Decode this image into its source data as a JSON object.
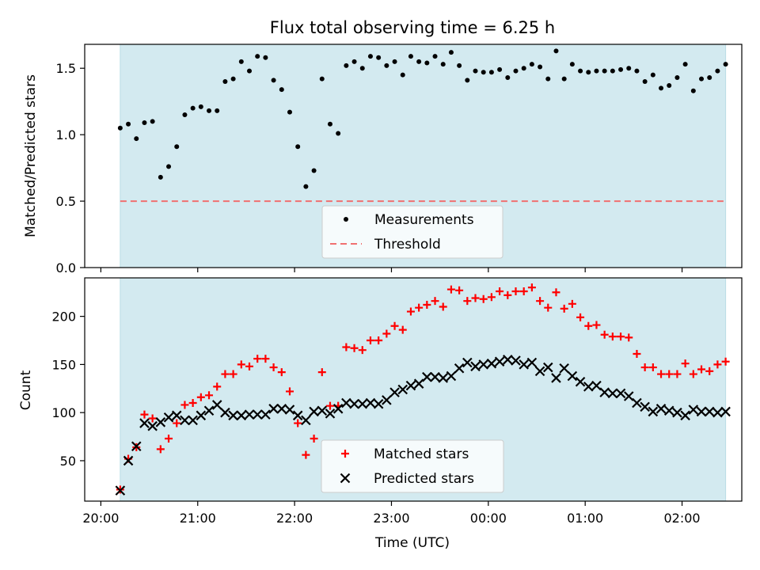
{
  "chart_data": [
    {
      "type": "scatter",
      "title": "Flux total observing time = 6.25 h",
      "ylabel": "Matched/Predicted stars",
      "xlabel": "",
      "ylim": [
        0.0,
        1.68
      ],
      "yticks": [
        "0.0",
        "0.5",
        "1.0",
        "1.5"
      ],
      "yticks_values": [
        0.0,
        0.5,
        1.0,
        1.5
      ],
      "observing_window": [
        "20:12",
        "02:27"
      ],
      "shade_color": "#d3eaf0",
      "legend": {
        "placement": "bottom-center",
        "entries": [
          "Measurements",
          "Threshold"
        ]
      },
      "series": [
        {
          "name": "Measurements",
          "marker": "dot",
          "color": "#000000",
          "x": [
            "20:12",
            "20:17",
            "20:22",
            "20:27",
            "20:32",
            "20:37",
            "20:42",
            "20:47",
            "20:52",
            "20:57",
            "21:02",
            "21:07",
            "21:12",
            "21:17",
            "21:22",
            "21:27",
            "21:32",
            "21:37",
            "21:42",
            "21:47",
            "21:52",
            "21:57",
            "22:02",
            "22:07",
            "22:12",
            "22:17",
            "22:22",
            "22:27",
            "22:32",
            "22:37",
            "22:42",
            "22:47",
            "22:52",
            "22:57",
            "23:02",
            "23:07",
            "23:12",
            "23:17",
            "23:22",
            "23:27",
            "23:32",
            "23:37",
            "23:42",
            "23:47",
            "23:52",
            "23:57",
            "00:02",
            "00:07",
            "00:12",
            "00:17",
            "00:22",
            "00:27",
            "00:32",
            "00:37",
            "00:42",
            "00:47",
            "00:52",
            "00:57",
            "01:02",
            "01:07",
            "01:12",
            "01:17",
            "01:22",
            "01:27",
            "01:32",
            "01:37",
            "01:42",
            "01:47",
            "01:52",
            "01:57",
            "02:02",
            "02:07",
            "02:12",
            "02:17",
            "02:22",
            "02:27"
          ],
          "y": [
            1.05,
            1.08,
            0.97,
            1.09,
            1.1,
            0.68,
            0.76,
            0.91,
            1.15,
            1.2,
            1.21,
            1.18,
            1.18,
            1.4,
            1.42,
            1.55,
            1.48,
            1.59,
            1.58,
            1.41,
            1.34,
            1.17,
            0.91,
            0.61,
            0.73,
            1.42,
            1.08,
            1.01,
            1.52,
            1.55,
            1.5,
            1.59,
            1.58,
            1.52,
            1.55,
            1.45,
            1.59,
            1.55,
            1.54,
            1.59,
            1.53,
            1.62,
            1.52,
            1.41,
            1.48,
            1.47,
            1.47,
            1.49,
            1.43,
            1.48,
            1.5,
            1.53,
            1.51,
            1.42,
            1.63,
            1.42,
            1.53,
            1.48,
            1.47,
            1.48,
            1.48,
            1.48,
            1.49,
            1.5,
            1.48,
            1.4,
            1.45,
            1.35,
            1.37,
            1.43,
            1.53,
            1.33,
            1.42,
            1.43,
            1.48,
            1.53
          ]
        },
        {
          "name": "Threshold",
          "marker": "dashed-line",
          "color": "#f07070",
          "y": 0.5
        }
      ]
    },
    {
      "type": "scatter",
      "title": "",
      "ylabel": "Count",
      "xlabel": "Time (UTC)",
      "ylim": [
        8,
        240
      ],
      "yticks": [
        "50",
        "100",
        "150",
        "200"
      ],
      "yticks_values": [
        50,
        100,
        150,
        200
      ],
      "xticks": [
        "20:00",
        "21:00",
        "22:00",
        "23:00",
        "00:00",
        "01:00",
        "02:00"
      ],
      "xlim": [
        "19:50",
        "02:37"
      ],
      "observing_window": [
        "20:12",
        "02:27"
      ],
      "shade_color": "#d3eaf0",
      "legend": {
        "placement": "bottom-center",
        "entries": [
          "Matched stars",
          "Predicted stars"
        ]
      },
      "series": [
        {
          "name": "Matched stars",
          "marker": "plus",
          "color": "#ff0000",
          "x": [
            "20:12",
            "20:17",
            "20:22",
            "20:27",
            "20:32",
            "20:37",
            "20:42",
            "20:47",
            "20:52",
            "20:57",
            "21:02",
            "21:07",
            "21:12",
            "21:17",
            "21:22",
            "21:27",
            "21:32",
            "21:37",
            "21:42",
            "21:47",
            "21:52",
            "21:57",
            "22:02",
            "22:07",
            "22:12",
            "22:17",
            "22:22",
            "22:27",
            "22:32",
            "22:37",
            "22:42",
            "22:47",
            "22:52",
            "22:57",
            "23:02",
            "23:07",
            "23:12",
            "23:17",
            "23:22",
            "23:27",
            "23:32",
            "23:37",
            "23:42",
            "23:47",
            "23:52",
            "23:57",
            "00:02",
            "00:07",
            "00:12",
            "00:17",
            "00:22",
            "00:27",
            "00:32",
            "00:37",
            "00:42",
            "00:47",
            "00:52",
            "00:57",
            "01:02",
            "01:07",
            "01:12",
            "01:17",
            "01:22",
            "01:27",
            "01:32",
            "01:37",
            "01:42",
            "01:47",
            "01:52",
            "01:57",
            "02:02",
            "02:07",
            "02:12",
            "02:17",
            "02:22",
            "02:27"
          ],
          "y": [
            20,
            52,
            64,
            98,
            94,
            62,
            73,
            89,
            108,
            110,
            116,
            118,
            127,
            140,
            140,
            150,
            148,
            156,
            156,
            147,
            142,
            122,
            89,
            56,
            73,
            142,
            107,
            107,
            168,
            167,
            165,
            175,
            175,
            182,
            190,
            186,
            205,
            209,
            212,
            216,
            210,
            228,
            227,
            216,
            219,
            218,
            220,
            226,
            222,
            226,
            226,
            230,
            216,
            209,
            225,
            208,
            213,
            199,
            190,
            191,
            181,
            179,
            179,
            178,
            161,
            147,
            147,
            140,
            140,
            140,
            151,
            140,
            145,
            143,
            150,
            153
          ]
        },
        {
          "name": "Predicted stars",
          "marker": "x",
          "color": "#000000",
          "x": [
            "20:12",
            "20:17",
            "20:22",
            "20:27",
            "20:32",
            "20:37",
            "20:42",
            "20:47",
            "20:52",
            "20:57",
            "21:02",
            "21:07",
            "21:12",
            "21:17",
            "21:22",
            "21:27",
            "21:32",
            "21:37",
            "21:42",
            "21:47",
            "21:52",
            "21:57",
            "22:02",
            "22:07",
            "22:12",
            "22:17",
            "22:22",
            "22:27",
            "22:32",
            "22:37",
            "22:42",
            "22:47",
            "22:52",
            "22:57",
            "23:02",
            "23:07",
            "23:12",
            "23:17",
            "23:22",
            "23:27",
            "23:32",
            "23:37",
            "23:42",
            "23:47",
            "23:52",
            "23:57",
            "00:02",
            "00:07",
            "00:12",
            "00:17",
            "00:22",
            "00:27",
            "00:32",
            "00:37",
            "00:42",
            "00:47",
            "00:52",
            "00:57",
            "01:02",
            "01:07",
            "01:12",
            "01:17",
            "01:22",
            "01:27",
            "01:32",
            "01:37",
            "01:42",
            "01:47",
            "01:52",
            "01:57",
            "02:02",
            "02:07",
            "02:12",
            "02:17",
            "02:22",
            "02:27"
          ],
          "y": [
            19,
            50,
            65,
            89,
            86,
            90,
            95,
            97,
            92,
            92,
            97,
            102,
            108,
            100,
            97,
            97,
            98,
            98,
            98,
            104,
            104,
            103,
            97,
            92,
            101,
            102,
            99,
            104,
            110,
            109,
            109,
            110,
            109,
            113,
            121,
            124,
            128,
            130,
            137,
            137,
            136,
            138,
            146,
            152,
            148,
            150,
            151,
            153,
            155,
            154,
            150,
            152,
            143,
            147,
            136,
            146,
            138,
            132,
            127,
            128,
            121,
            120,
            120,
            117,
            110,
            106,
            101,
            104,
            102,
            100,
            97,
            103,
            101,
            101,
            100,
            101
          ]
        }
      ]
    }
  ]
}
